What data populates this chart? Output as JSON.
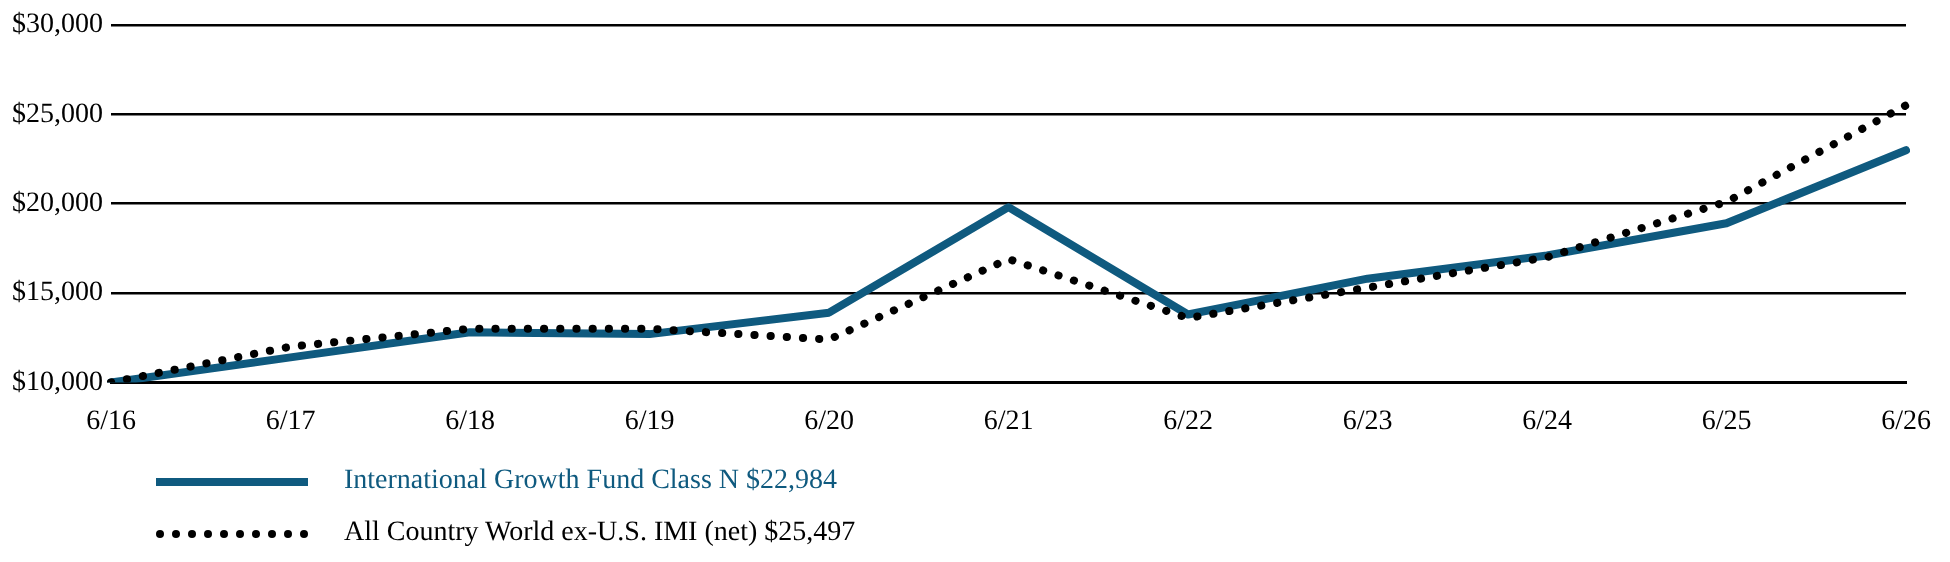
{
  "chart_data": {
    "type": "line",
    "categories": [
      "6/16",
      "6/17",
      "6/18",
      "6/19",
      "6/20",
      "6/21",
      "6/22",
      "6/23",
      "6/24",
      "6/25",
      "6/26"
    ],
    "series": [
      {
        "name": "International Growth Fund Class N $22,984",
        "color": "#0f5a7f",
        "line_style": "solid",
        "values": [
          10000,
          11400,
          12800,
          12700,
          13900,
          19800,
          13800,
          15800,
          17100,
          18900,
          22984
        ]
      },
      {
        "name": "All Country World ex-U.S. IMI (net) $25,497",
        "color": "#000000",
        "line_style": "dotted",
        "values": [
          10000,
          12000,
          13000,
          13000,
          12400,
          16900,
          13600,
          15300,
          17000,
          20100,
          25497
        ]
      }
    ],
    "ylim": [
      10000,
      30000
    ],
    "yticks": [
      {
        "value": 10000,
        "label": "$10,000"
      },
      {
        "value": 15000,
        "label": "$15,000"
      },
      {
        "value": 20000,
        "label": "$20,000"
      },
      {
        "value": 25000,
        "label": "$25,000"
      },
      {
        "value": 30000,
        "label": "$30,000"
      }
    ],
    "grid": "y",
    "legend": "bottom left",
    "marker": "none"
  }
}
